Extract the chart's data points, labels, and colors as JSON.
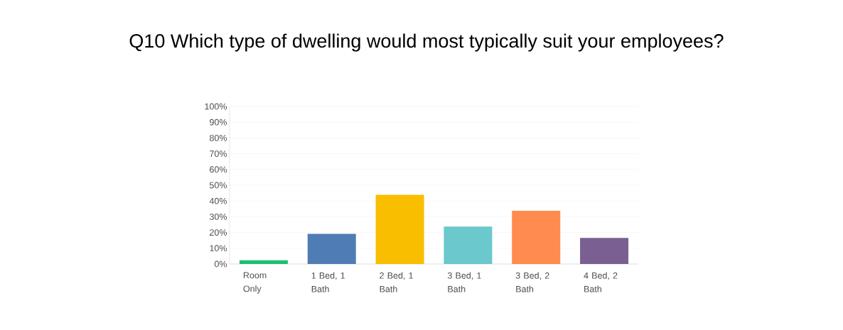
{
  "chart_data": {
    "type": "bar",
    "title": "Q10 Which type of dwelling would most typically suit your employees?",
    "categories": [
      "Room Only",
      "1 Bed, 1 Bath",
      "2 Bed, 1 Bath",
      "3 Bed, 1 Bath",
      "3 Bed, 2 Bath",
      "4 Bed, 2 Bath"
    ],
    "values": [
      2.4,
      19.1,
      43.9,
      23.8,
      33.8,
      16.5
    ],
    "colors": [
      "#1dbf73",
      "#507cb6",
      "#f9be00",
      "#6bc8cd",
      "#ff8b4f",
      "#7a5f92"
    ],
    "ylim": [
      0,
      100
    ],
    "yticks": [
      {
        "value": 0,
        "label": "0%"
      },
      {
        "value": 10,
        "label": "10%"
      },
      {
        "value": 20,
        "label": "20%"
      },
      {
        "value": 30,
        "label": "30%"
      },
      {
        "value": 40,
        "label": "40%"
      },
      {
        "value": 50,
        "label": "50%"
      },
      {
        "value": 60,
        "label": "60%"
      },
      {
        "value": 70,
        "label": "70%"
      },
      {
        "value": 80,
        "label": "80%"
      },
      {
        "value": 90,
        "label": "90%"
      },
      {
        "value": 100,
        "label": "100%"
      }
    ],
    "grid": "y"
  }
}
